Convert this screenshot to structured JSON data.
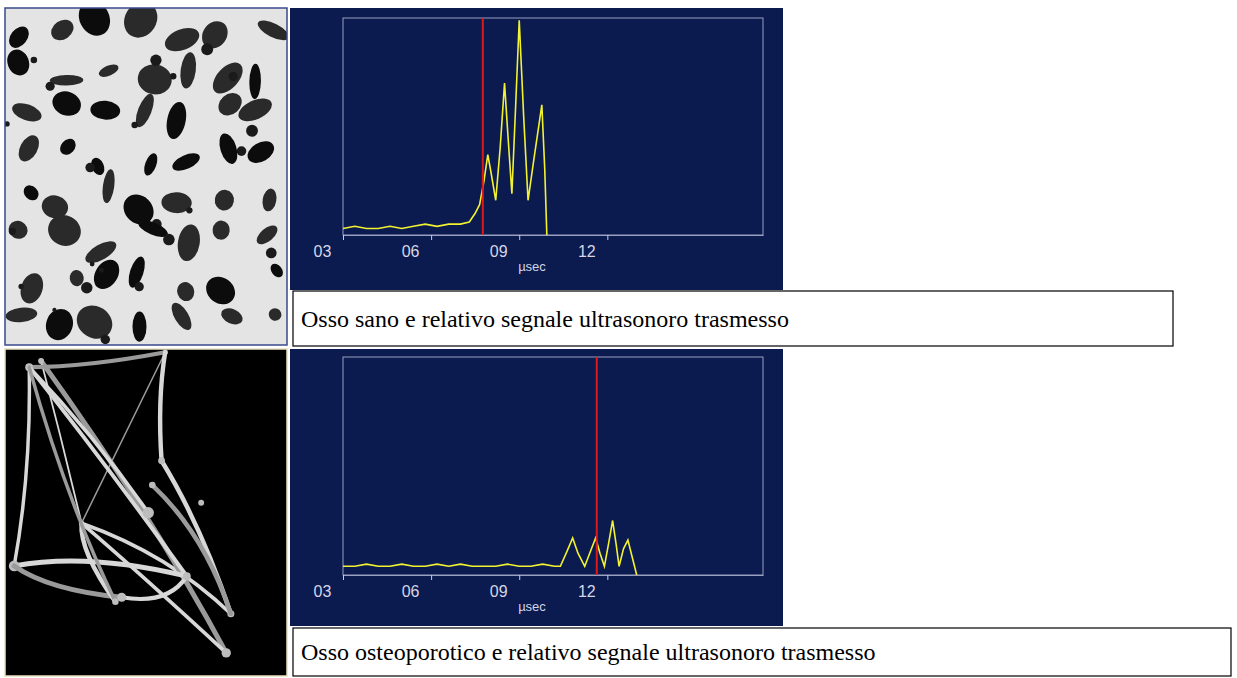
{
  "chart_data": [
    {
      "type": "line",
      "title": "Osso sano e relativo segnale ultrasonoro trasmesso",
      "x_label": "µsec",
      "x": [
        3.0,
        3.4,
        3.8,
        4.2,
        4.6,
        5.0,
        5.4,
        5.8,
        6.2,
        6.6,
        7.0,
        7.3,
        7.5,
        7.65,
        7.8,
        7.93,
        8.05,
        8.2,
        8.35,
        8.5,
        8.62,
        8.75,
        8.88,
        9.0,
        9.15,
        9.3,
        9.5,
        9.77,
        9.87,
        9.94
      ],
      "series": [
        {
          "color": "#f2f230",
          "values": [
            3,
            4,
            3,
            3,
            4,
            3,
            4,
            5,
            4,
            5,
            5,
            6,
            10,
            14,
            25,
            37,
            28,
            16,
            40,
            70,
            45,
            19,
            60,
            99,
            55,
            16,
            35,
            60,
            30,
            0
          ]
        }
      ],
      "arrival_time": 7.76,
      "xlim": [
        3,
        17.3
      ],
      "xticks": [
        {
          "value": 3,
          "label": "03"
        },
        {
          "value": 6,
          "label": "06"
        },
        {
          "value": 9,
          "label": "09"
        },
        {
          "value": 12,
          "label": "12"
        }
      ],
      "ylim": [
        0,
        100
      ],
      "tick_labels": "x",
      "grid": false
    },
    {
      "type": "line",
      "title": "Osso osteoporotico e relativo segnale ultrasonoro trasmesso",
      "x_label": "µsec",
      "x": [
        3.0,
        3.4,
        3.8,
        4.2,
        4.6,
        5.0,
        5.4,
        5.8,
        6.2,
        6.6,
        7.0,
        7.4,
        7.8,
        8.2,
        8.6,
        9.0,
        9.4,
        9.8,
        10.2,
        10.4,
        10.6,
        10.82,
        11.0,
        11.23,
        11.4,
        11.6,
        11.75,
        11.9,
        12.05,
        12.18,
        12.3,
        12.4,
        12.55,
        12.7,
        12.85,
        13.0
      ],
      "series": [
        {
          "color": "#f2f230",
          "values": [
            4,
            4,
            5,
            4,
            4,
            5,
            4,
            4,
            5,
            4,
            5,
            4,
            4,
            4,
            5,
            4,
            4,
            5,
            4,
            4,
            10,
            17,
            10,
            4,
            10,
            17,
            10,
            4,
            15,
            25,
            14,
            4,
            12,
            16,
            8,
            0
          ]
        }
      ],
      "arrival_time": 11.64,
      "xlim": [
        3,
        17.3
      ],
      "xticks": [
        {
          "value": 3,
          "label": "03"
        },
        {
          "value": 6,
          "label": "06"
        },
        {
          "value": 9,
          "label": "09"
        },
        {
          "value": 12,
          "label": "12"
        }
      ],
      "ylim": [
        0,
        100
      ],
      "tick_labels": "x",
      "grid": false
    }
  ]
}
